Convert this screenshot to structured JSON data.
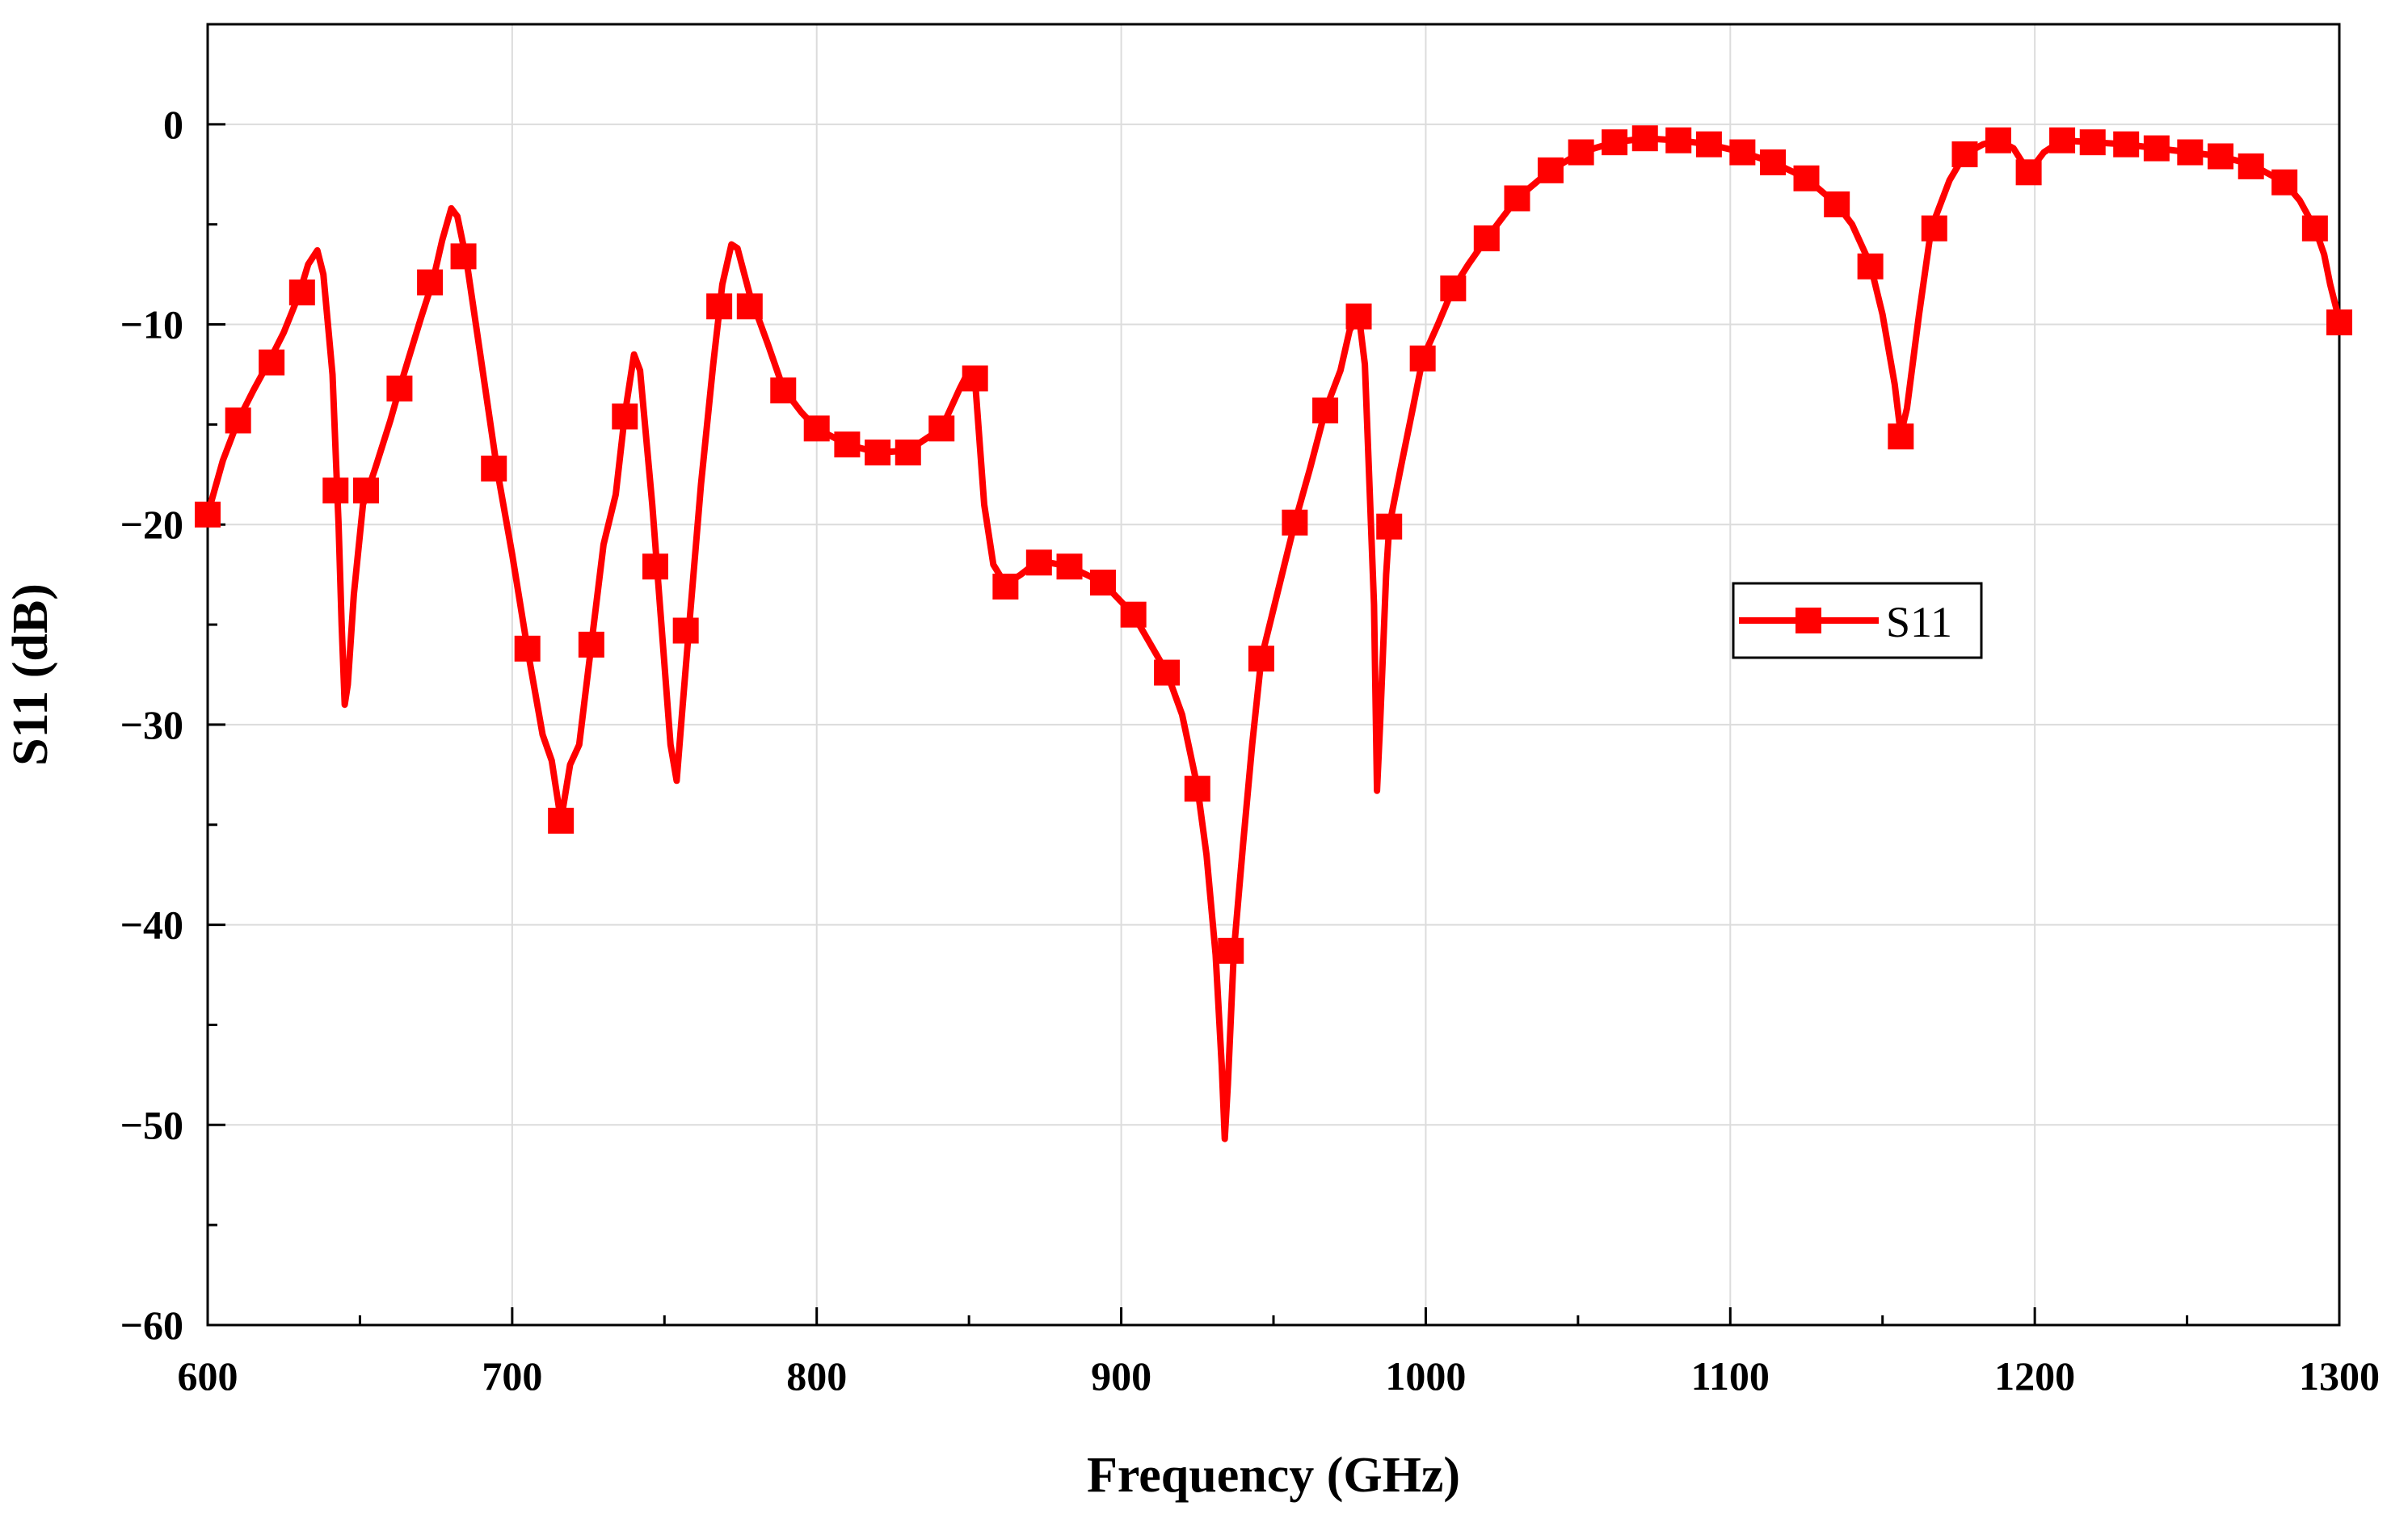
{
  "chart_data": {
    "type": "line",
    "xlabel": "Frequency (GHz)",
    "ylabel": "S11 (dB)",
    "xlim": [
      600,
      1300
    ],
    "ylim": [
      -60,
      5
    ],
    "xticks": [
      600,
      700,
      800,
      900,
      1000,
      1100,
      1200,
      1300
    ],
    "yticks": [
      0,
      -10,
      -20,
      -30,
      -40,
      -50,
      -60
    ],
    "ytick_labels": [
      "0",
      "−10",
      "−20",
      "−30",
      "−40",
      "−50",
      "−60"
    ],
    "grid": true,
    "legend_position": "center-right",
    "series": [
      {
        "name": "S11",
        "color": "#ff0000",
        "marker": "square",
        "line": [
          [
            600,
            -19.5
          ],
          [
            605,
            -16.8
          ],
          [
            610,
            -14.8
          ],
          [
            615,
            -13.3
          ],
          [
            620,
            -11.9
          ],
          [
            625,
            -10.4
          ],
          [
            630,
            -8.5
          ],
          [
            633,
            -7.0
          ],
          [
            636,
            -6.3
          ],
          [
            638,
            -7.5
          ],
          [
            641,
            -12.5
          ],
          [
            643,
            -20.0
          ],
          [
            644,
            -25.0
          ],
          [
            645,
            -29.0
          ],
          [
            646,
            -28.0
          ],
          [
            648,
            -23.5
          ],
          [
            651,
            -19.0
          ],
          [
            655,
            -17.2
          ],
          [
            660,
            -14.8
          ],
          [
            663,
            -13.2
          ],
          [
            666,
            -11.7
          ],
          [
            670,
            -9.7
          ],
          [
            674,
            -7.8
          ],
          [
            677,
            -5.8
          ],
          [
            680,
            -4.2
          ],
          [
            682,
            -4.6
          ],
          [
            685,
            -6.8
          ],
          [
            690,
            -12.0
          ],
          [
            695,
            -17.2
          ],
          [
            700,
            -21.5
          ],
          [
            705,
            -26.2
          ],
          [
            710,
            -30.5
          ],
          [
            713,
            -31.8
          ],
          [
            716,
            -34.8
          ],
          [
            719,
            -32.0
          ],
          [
            722,
            -31.0
          ],
          [
            726,
            -26.0
          ],
          [
            730,
            -21.0
          ],
          [
            734,
            -18.5
          ],
          [
            737,
            -14.5
          ],
          [
            740,
            -11.5
          ],
          [
            742,
            -12.3
          ],
          [
            746,
            -19.0
          ],
          [
            750,
            -27.0
          ],
          [
            752,
            -31.0
          ],
          [
            754,
            -32.8
          ],
          [
            756,
            -29.0
          ],
          [
            758,
            -25.3
          ],
          [
            762,
            -18.0
          ],
          [
            766,
            -12.0
          ],
          [
            769,
            -8.0
          ],
          [
            772,
            -6.0
          ],
          [
            774,
            -6.2
          ],
          [
            778,
            -8.5
          ],
          [
            784,
            -11.0
          ],
          [
            789,
            -13.2
          ],
          [
            795,
            -14.4
          ],
          [
            800,
            -15.2
          ],
          [
            810,
            -16.0
          ],
          [
            820,
            -16.4
          ],
          [
            830,
            -16.3
          ],
          [
            841,
            -15.2
          ],
          [
            847,
            -13.2
          ],
          [
            850,
            -12.3
          ],
          [
            852,
            -12.8
          ],
          [
            855,
            -19.0
          ],
          [
            858,
            -22.0
          ],
          [
            862,
            -23.0
          ],
          [
            867,
            -22.5
          ],
          [
            873,
            -21.8
          ],
          [
            883,
            -22.1
          ],
          [
            894,
            -22.9
          ],
          [
            904,
            -24.5
          ],
          [
            915,
            -27.4
          ],
          [
            920,
            -29.5
          ],
          [
            925,
            -33.1
          ],
          [
            928,
            -36.5
          ],
          [
            931,
            -41.5
          ],
          [
            933,
            -47.0
          ],
          [
            934,
            -50.7
          ],
          [
            935,
            -48.0
          ],
          [
            937,
            -41.3
          ],
          [
            940,
            -36.0
          ],
          [
            943,
            -31.0
          ],
          [
            946,
            -26.7
          ],
          [
            952,
            -23.0
          ],
          [
            957,
            -19.9
          ],
          [
            962,
            -17.2
          ],
          [
            967,
            -14.3
          ],
          [
            972,
            -12.3
          ],
          [
            975,
            -10.3
          ],
          [
            978,
            -9.5
          ],
          [
            980,
            -12.0
          ],
          [
            983,
            -24.0
          ],
          [
            984,
            -33.3
          ],
          [
            985,
            -30.0
          ],
          [
            987,
            -22.5
          ],
          [
            988,
            -20.1
          ],
          [
            992,
            -17.0
          ],
          [
            996,
            -14.0
          ],
          [
            999,
            -11.7
          ],
          [
            1004,
            -10.0
          ],
          [
            1009,
            -8.2
          ],
          [
            1014,
            -7.0
          ],
          [
            1020,
            -5.7
          ],
          [
            1030,
            -3.7
          ],
          [
            1041,
            -2.3
          ],
          [
            1051,
            -1.4
          ],
          [
            1062,
            -0.9
          ],
          [
            1072,
            -0.7
          ],
          [
            1083,
            -0.8
          ],
          [
            1093,
            -1.0
          ],
          [
            1104,
            -1.4
          ],
          [
            1114,
            -1.9
          ],
          [
            1125,
            -2.7
          ],
          [
            1135,
            -4.0
          ],
          [
            1140,
            -5.0
          ],
          [
            1146,
            -7.0
          ],
          [
            1150,
            -9.5
          ],
          [
            1154,
            -13.0
          ],
          [
            1156,
            -15.5
          ],
          [
            1158,
            -14.2
          ],
          [
            1162,
            -9.5
          ],
          [
            1166,
            -5.2
          ],
          [
            1172,
            -2.8
          ],
          [
            1177,
            -1.5
          ],
          [
            1183,
            -1.0
          ],
          [
            1188,
            -0.8
          ],
          [
            1193,
            -1.2
          ],
          [
            1198,
            -2.4
          ],
          [
            1203,
            -1.4
          ],
          [
            1209,
            -0.8
          ],
          [
            1219,
            -0.9
          ],
          [
            1230,
            -1.0
          ],
          [
            1240,
            -1.2
          ],
          [
            1251,
            -1.4
          ],
          [
            1261,
            -1.6
          ],
          [
            1271,
            -2.0
          ],
          [
            1282,
            -2.9
          ],
          [
            1287,
            -3.8
          ],
          [
            1292,
            -5.2
          ],
          [
            1295,
            -6.5
          ],
          [
            1297,
            -8.0
          ],
          [
            1300,
            -9.8
          ]
        ],
        "markers": [
          [
            600,
            -19.5
          ],
          [
            610,
            -14.8
          ],
          [
            621,
            -11.9
          ],
          [
            631,
            -8.4
          ],
          [
            642,
            -18.3
          ],
          [
            652,
            -18.3
          ],
          [
            663,
            -13.2
          ],
          [
            673,
            -7.9
          ],
          [
            684,
            -6.6
          ],
          [
            694,
            -17.2
          ],
          [
            705,
            -26.2
          ],
          [
            716,
            -34.8
          ],
          [
            726,
            -26.0
          ],
          [
            737,
            -14.6
          ],
          [
            747,
            -22.1
          ],
          [
            757,
            -25.3
          ],
          [
            768,
            -9.1
          ],
          [
            778,
            -9.1
          ],
          [
            789,
            -13.3
          ],
          [
            800,
            -15.2
          ],
          [
            810,
            -16.0
          ],
          [
            820,
            -16.4
          ],
          [
            830,
            -16.4
          ],
          [
            841,
            -15.2
          ],
          [
            852,
            -12.7
          ],
          [
            862,
            -23.1
          ],
          [
            873,
            -21.9
          ],
          [
            883,
            -22.1
          ],
          [
            894,
            -22.9
          ],
          [
            904,
            -24.5
          ],
          [
            915,
            -27.4
          ],
          [
            925,
            -33.2
          ],
          [
            936,
            -41.3
          ],
          [
            946,
            -26.7
          ],
          [
            957,
            -19.9
          ],
          [
            967,
            -14.3
          ],
          [
            978,
            -9.6
          ],
          [
            988,
            -20.1
          ],
          [
            999,
            -11.7
          ],
          [
            1009,
            -8.2
          ],
          [
            1020,
            -5.7
          ],
          [
            1030,
            -3.7
          ],
          [
            1041,
            -2.3
          ],
          [
            1051,
            -1.4
          ],
          [
            1062,
            -0.9
          ],
          [
            1072,
            -0.7
          ],
          [
            1083,
            -0.8
          ],
          [
            1093,
            -1.0
          ],
          [
            1104,
            -1.4
          ],
          [
            1114,
            -1.9
          ],
          [
            1125,
            -2.7
          ],
          [
            1135,
            -4.0
          ],
          [
            1146,
            -7.1
          ],
          [
            1156,
            -15.6
          ],
          [
            1167,
            -5.2
          ],
          [
            1177,
            -1.5
          ],
          [
            1188,
            -0.8
          ],
          [
            1198,
            -2.4
          ],
          [
            1209,
            -0.8
          ],
          [
            1219,
            -0.9
          ],
          [
            1230,
            -1.0
          ],
          [
            1240,
            -1.2
          ],
          [
            1251,
            -1.4
          ],
          [
            1261,
            -1.6
          ],
          [
            1271,
            -2.1
          ],
          [
            1282,
            -2.9
          ],
          [
            1292,
            -5.2
          ],
          [
            1300,
            -9.9
          ]
        ]
      }
    ]
  }
}
